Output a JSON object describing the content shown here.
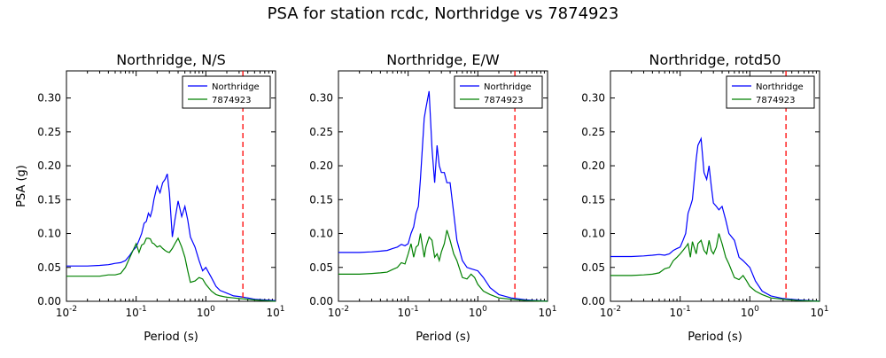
{
  "figure": {
    "title": "PSA for station rcdc, Northridge vs 7874923"
  },
  "chart_data": [
    {
      "type": "line",
      "title": "Northridge, N/S",
      "xlabel": "Period (s)",
      "ylabel": "PSA (g)",
      "xscale": "log",
      "xlim": [
        0.01,
        10
      ],
      "ylim": [
        0,
        0.34
      ],
      "xticks": [
        "10^-2",
        "10^-1",
        "10^0",
        "10^1"
      ],
      "yticks": [
        "0.00",
        "0.05",
        "0.10",
        "0.15",
        "0.20",
        "0.25",
        "0.30"
      ],
      "grid": false,
      "legend": "top-right",
      "vline": {
        "x": 3.4,
        "color": "#ff0000",
        "style": "dashed"
      },
      "series": [
        {
          "name": "Northridge",
          "color": "#0000ff",
          "x": [
            0.01,
            0.02,
            0.03,
            0.04,
            0.05,
            0.06,
            0.07,
            0.08,
            0.09,
            0.1,
            0.11,
            0.12,
            0.13,
            0.14,
            0.15,
            0.16,
            0.17,
            0.18,
            0.2,
            0.22,
            0.24,
            0.26,
            0.28,
            0.3,
            0.33,
            0.36,
            0.4,
            0.45,
            0.5,
            0.55,
            0.6,
            0.7,
            0.8,
            0.9,
            1.0,
            1.2,
            1.4,
            1.6,
            2.0,
            2.5,
            3.0,
            4.0,
            5.0,
            7.0,
            10.0
          ],
          "y": [
            0.052,
            0.052,
            0.053,
            0.054,
            0.056,
            0.057,
            0.06,
            0.067,
            0.075,
            0.08,
            0.09,
            0.1,
            0.115,
            0.118,
            0.13,
            0.125,
            0.135,
            0.15,
            0.17,
            0.16,
            0.175,
            0.18,
            0.188,
            0.16,
            0.095,
            0.12,
            0.148,
            0.125,
            0.14,
            0.12,
            0.095,
            0.08,
            0.06,
            0.045,
            0.05,
            0.035,
            0.022,
            0.016,
            0.012,
            0.008,
            0.007,
            0.005,
            0.003,
            0.002,
            0.001
          ]
        },
        {
          "name": "7874923",
          "color": "#008000",
          "x": [
            0.01,
            0.02,
            0.03,
            0.04,
            0.05,
            0.06,
            0.07,
            0.08,
            0.09,
            0.1,
            0.11,
            0.12,
            0.13,
            0.14,
            0.15,
            0.16,
            0.17,
            0.18,
            0.2,
            0.22,
            0.24,
            0.26,
            0.28,
            0.3,
            0.33,
            0.36,
            0.4,
            0.45,
            0.5,
            0.55,
            0.6,
            0.7,
            0.8,
            0.9,
            1.0,
            1.2,
            1.4,
            1.6,
            2.0,
            2.5,
            3.0,
            4.0,
            5.0,
            7.0,
            10.0
          ],
          "y": [
            0.037,
            0.037,
            0.037,
            0.039,
            0.039,
            0.041,
            0.05,
            0.063,
            0.075,
            0.085,
            0.072,
            0.083,
            0.085,
            0.093,
            0.093,
            0.092,
            0.086,
            0.085,
            0.08,
            0.082,
            0.078,
            0.075,
            0.073,
            0.072,
            0.078,
            0.085,
            0.093,
            0.08,
            0.065,
            0.045,
            0.028,
            0.03,
            0.035,
            0.033,
            0.025,
            0.015,
            0.01,
            0.008,
            0.006,
            0.005,
            0.004,
            0.003,
            0.002,
            0.001,
            0.0
          ]
        }
      ]
    },
    {
      "type": "line",
      "title": "Northridge, E/W",
      "xlabel": "Period (s)",
      "ylabel": "",
      "xscale": "log",
      "xlim": [
        0.01,
        10
      ],
      "ylim": [
        0,
        0.34
      ],
      "xticks": [
        "10^-2",
        "10^-1",
        "10^0",
        "10^1"
      ],
      "yticks": [
        "0.00",
        "0.05",
        "0.10",
        "0.15",
        "0.20",
        "0.25",
        "0.30"
      ],
      "grid": false,
      "legend": "top-right",
      "vline": {
        "x": 3.4,
        "color": "#ff0000",
        "style": "dashed"
      },
      "series": [
        {
          "name": "Northridge",
          "color": "#0000ff",
          "x": [
            0.01,
            0.02,
            0.03,
            0.04,
            0.05,
            0.06,
            0.07,
            0.08,
            0.09,
            0.1,
            0.11,
            0.12,
            0.13,
            0.14,
            0.15,
            0.17,
            0.18,
            0.2,
            0.22,
            0.24,
            0.26,
            0.28,
            0.3,
            0.33,
            0.36,
            0.4,
            0.45,
            0.5,
            0.6,
            0.7,
            0.8,
            1.0,
            1.2,
            1.5,
            2.0,
            3.0,
            5.0,
            10.0
          ],
          "y": [
            0.072,
            0.072,
            0.073,
            0.074,
            0.075,
            0.078,
            0.08,
            0.084,
            0.082,
            0.085,
            0.1,
            0.11,
            0.13,
            0.14,
            0.18,
            0.27,
            0.285,
            0.31,
            0.225,
            0.175,
            0.23,
            0.2,
            0.19,
            0.19,
            0.175,
            0.175,
            0.13,
            0.09,
            0.06,
            0.05,
            0.048,
            0.045,
            0.035,
            0.02,
            0.01,
            0.005,
            0.002,
            0.0
          ]
        },
        {
          "name": "7874923",
          "color": "#008000",
          "x": [
            0.01,
            0.02,
            0.03,
            0.04,
            0.05,
            0.06,
            0.07,
            0.08,
            0.09,
            0.1,
            0.11,
            0.12,
            0.13,
            0.14,
            0.15,
            0.17,
            0.18,
            0.2,
            0.22,
            0.24,
            0.26,
            0.28,
            0.3,
            0.33,
            0.36,
            0.4,
            0.45,
            0.5,
            0.6,
            0.7,
            0.8,
            0.9,
            1.0,
            1.2,
            1.5,
            2.0,
            3.0,
            5.0,
            10.0
          ],
          "y": [
            0.04,
            0.04,
            0.041,
            0.042,
            0.043,
            0.047,
            0.05,
            0.057,
            0.055,
            0.07,
            0.085,
            0.065,
            0.08,
            0.083,
            0.1,
            0.065,
            0.08,
            0.095,
            0.09,
            0.065,
            0.07,
            0.06,
            0.073,
            0.085,
            0.105,
            0.09,
            0.07,
            0.06,
            0.035,
            0.033,
            0.04,
            0.035,
            0.025,
            0.015,
            0.01,
            0.005,
            0.003,
            0.001,
            0.0
          ]
        }
      ]
    },
    {
      "type": "line",
      "title": "Northridge, rotd50",
      "xlabel": "Period (s)",
      "ylabel": "",
      "xscale": "log",
      "xlim": [
        0.01,
        10
      ],
      "ylim": [
        0,
        0.34
      ],
      "xticks": [
        "10^-2",
        "10^-1",
        "10^0",
        "10^1"
      ],
      "yticks": [
        "0.00",
        "0.05",
        "0.10",
        "0.15",
        "0.20",
        "0.25",
        "0.30"
      ],
      "grid": false,
      "legend": "top-right",
      "vline": {
        "x": 3.3,
        "color": "#ff0000",
        "style": "dashed"
      },
      "series": [
        {
          "name": "Northridge",
          "color": "#0000ff",
          "x": [
            0.01,
            0.02,
            0.03,
            0.04,
            0.05,
            0.06,
            0.07,
            0.08,
            0.09,
            0.1,
            0.11,
            0.12,
            0.13,
            0.14,
            0.15,
            0.17,
            0.18,
            0.2,
            0.22,
            0.24,
            0.26,
            0.28,
            0.3,
            0.33,
            0.36,
            0.4,
            0.45,
            0.5,
            0.6,
            0.7,
            0.8,
            1.0,
            1.2,
            1.5,
            2.0,
            3.0,
            5.0,
            10.0
          ],
          "y": [
            0.066,
            0.066,
            0.067,
            0.068,
            0.069,
            0.068,
            0.07,
            0.075,
            0.078,
            0.08,
            0.09,
            0.1,
            0.13,
            0.14,
            0.15,
            0.21,
            0.23,
            0.24,
            0.19,
            0.18,
            0.2,
            0.17,
            0.145,
            0.14,
            0.135,
            0.14,
            0.12,
            0.1,
            0.09,
            0.065,
            0.06,
            0.05,
            0.03,
            0.015,
            0.008,
            0.004,
            0.002,
            0.0
          ]
        },
        {
          "name": "7874923",
          "color": "#008000",
          "x": [
            0.01,
            0.02,
            0.03,
            0.04,
            0.05,
            0.06,
            0.07,
            0.08,
            0.09,
            0.1,
            0.11,
            0.12,
            0.13,
            0.14,
            0.15,
            0.17,
            0.18,
            0.2,
            0.22,
            0.24,
            0.26,
            0.28,
            0.3,
            0.33,
            0.36,
            0.4,
            0.45,
            0.5,
            0.6,
            0.7,
            0.8,
            0.9,
            1.0,
            1.2,
            1.5,
            2.0,
            3.0,
            5.0,
            10.0
          ],
          "y": [
            0.038,
            0.038,
            0.039,
            0.04,
            0.042,
            0.048,
            0.05,
            0.06,
            0.065,
            0.07,
            0.075,
            0.08,
            0.085,
            0.065,
            0.088,
            0.07,
            0.085,
            0.09,
            0.075,
            0.07,
            0.09,
            0.075,
            0.07,
            0.08,
            0.1,
            0.085,
            0.065,
            0.055,
            0.035,
            0.032,
            0.038,
            0.03,
            0.022,
            0.015,
            0.01,
            0.005,
            0.003,
            0.001,
            0.0
          ]
        }
      ]
    }
  ]
}
